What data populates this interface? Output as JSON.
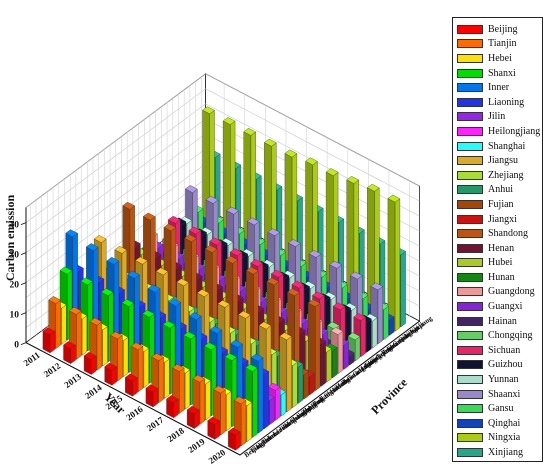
{
  "chart_data": {
    "type": "bar3d",
    "title": "",
    "zlabel": "Carbon emission",
    "xlabel": "Year",
    "ylabel": "Province",
    "years": [
      "2011",
      "2012",
      "2013",
      "2014",
      "2015",
      "2016",
      "2017",
      "2018",
      "2019",
      "2020"
    ],
    "zlim": [
      0,
      45
    ],
    "zticks": [
      0,
      10,
      20,
      30,
      40
    ],
    "grid": true,
    "legend_position": "right",
    "series": [
      {
        "name": "Beijing",
        "color": "#ff0000",
        "values": [
          6,
          5,
          5,
          5,
          5,
          5,
          5,
          5,
          5,
          5
        ]
      },
      {
        "name": "Tianjin",
        "color": "#ff6a00",
        "values": [
          15,
          15,
          15,
          14,
          14,
          14,
          14,
          14,
          14,
          14
        ]
      },
      {
        "name": "Hebei",
        "color": "#ffe000",
        "values": [
          12,
          12,
          12,
          12,
          12,
          12,
          12,
          12,
          12,
          12
        ]
      },
      {
        "name": "Shanxi",
        "color": "#00dd00",
        "values": [
          22,
          22,
          22,
          22,
          22,
          22,
          22,
          22,
          22,
          22
        ]
      },
      {
        "name": "Inner",
        "color": "#0077ee",
        "values": [
          33,
          32,
          31,
          30,
          29,
          28,
          27,
          26,
          25,
          24
        ]
      },
      {
        "name": "Liaoning",
        "color": "#2233ee",
        "values": [
          20,
          20,
          20,
          19,
          19,
          19,
          19,
          18,
          18,
          18
        ]
      },
      {
        "name": "Jilin",
        "color": "#9922ee",
        "values": [
          8,
          8,
          8,
          8,
          8,
          8,
          8,
          8,
          8,
          8
        ]
      },
      {
        "name": "Heilongjiang",
        "color": "#ff22ff",
        "values": [
          10,
          10,
          10,
          10,
          10,
          10,
          10,
          10,
          10,
          10
        ]
      },
      {
        "name": "Shanghai",
        "color": "#22ffff",
        "values": [
          7,
          7,
          7,
          7,
          7,
          7,
          7,
          7,
          7,
          7
        ]
      },
      {
        "name": "Jiangsu",
        "color": "#ddaa22",
        "values": [
          24,
          24,
          24,
          24,
          24,
          24,
          24,
          24,
          24,
          24
        ]
      },
      {
        "name": "Zhejiang",
        "color": "#aadd33",
        "values": [
          14,
          14,
          14,
          14,
          14,
          14,
          14,
          14,
          14,
          14
        ]
      },
      {
        "name": "Anhui",
        "color": "#229966",
        "values": [
          12,
          12,
          12,
          12,
          12,
          12,
          12,
          12,
          12,
          12
        ]
      },
      {
        "name": "Fujian",
        "color": "#aa4400",
        "values": [
          8,
          8,
          8,
          8,
          8,
          8,
          8,
          8,
          8,
          8
        ]
      },
      {
        "name": "Jiangxi",
        "color": "#cc1111",
        "values": [
          6,
          6,
          6,
          6,
          6,
          6,
          6,
          6,
          6,
          6
        ]
      },
      {
        "name": "Shandong",
        "color": "#bb5511",
        "values": [
          28,
          28,
          28,
          28,
          28,
          28,
          28,
          28,
          28,
          28
        ]
      },
      {
        "name": "Henan",
        "color": "#771133",
        "values": [
          14,
          14,
          14,
          14,
          14,
          14,
          14,
          14,
          14,
          14
        ]
      },
      {
        "name": "Hubei",
        "color": "#aacc22",
        "values": [
          10,
          10,
          10,
          10,
          10,
          10,
          10,
          10,
          10,
          10
        ]
      },
      {
        "name": "Hunan",
        "color": "#118811",
        "values": [
          9,
          9,
          9,
          9,
          9,
          9,
          9,
          9,
          9,
          9
        ]
      },
      {
        "name": "Guangdong",
        "color": "#ee9999",
        "values": [
          13,
          13,
          13,
          13,
          13,
          13,
          13,
          13,
          13,
          13
        ]
      },
      {
        "name": "Guangxi",
        "color": "#8822dd",
        "values": [
          8,
          8,
          8,
          8,
          8,
          8,
          8,
          8,
          8,
          8
        ]
      },
      {
        "name": "Hainan",
        "color": "#442266",
        "values": [
          3,
          3,
          3,
          3,
          3,
          3,
          3,
          3,
          3,
          3
        ]
      },
      {
        "name": "Chongqing",
        "color": "#66cc66",
        "values": [
          7,
          7,
          7,
          7,
          7,
          7,
          7,
          7,
          7,
          7
        ]
      },
      {
        "name": "Sichuan",
        "color": "#ee2266",
        "values": [
          12,
          12,
          12,
          12,
          12,
          12,
          12,
          12,
          12,
          12
        ]
      },
      {
        "name": "Guizhou",
        "color": "#111133",
        "values": [
          10,
          10,
          10,
          10,
          10,
          10,
          10,
          10,
          10,
          10
        ]
      },
      {
        "name": "Yunnan",
        "color": "#aaddcc",
        "values": [
          9,
          9,
          9,
          9,
          9,
          9,
          9,
          9,
          9,
          9
        ]
      },
      {
        "name": "Shaanxi",
        "color": "#9988cc",
        "values": [
          18,
          18,
          18,
          18,
          18,
          18,
          18,
          18,
          18,
          18
        ]
      },
      {
        "name": "Gansu",
        "color": "#33dd55",
        "values": [
          10,
          10,
          10,
          10,
          10,
          10,
          10,
          10,
          10,
          10
        ]
      },
      {
        "name": "Qinghai",
        "color": "#1144bb",
        "values": [
          5,
          5,
          5,
          5,
          5,
          5,
          5,
          5,
          5,
          5
        ]
      },
      {
        "name": "Ningxia",
        "color": "#aacc11",
        "values": [
          40,
          40,
          40,
          40,
          40,
          41,
          41,
          42,
          43,
          43
        ]
      },
      {
        "name": "Xinjiang",
        "color": "#22aa88",
        "values": [
          24,
          24,
          24,
          24,
          24,
          24,
          24,
          24,
          24,
          24
        ]
      }
    ]
  }
}
